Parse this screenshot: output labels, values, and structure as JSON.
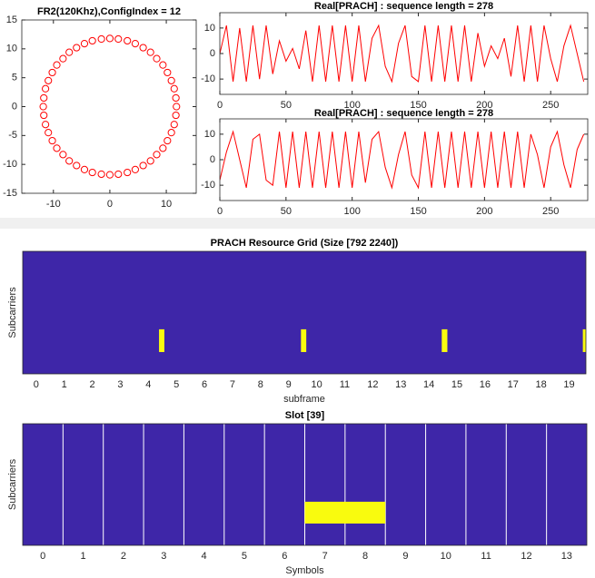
{
  "chart_data": [
    {
      "type": "scatter",
      "title": "FR2(120Khz),ConfigIndex = 12",
      "color": "#ff0000",
      "xlim": [
        -15.6,
        15.3
      ],
      "xticks": [
        -10,
        0,
        10
      ],
      "ylim": [
        -15,
        15
      ],
      "yticks": [
        -15,
        -10,
        -5,
        0,
        5,
        10,
        15
      ],
      "x": [
        11.8,
        11.7,
        11.4,
        10.9,
        10.2,
        9.4,
        8.3,
        7.2,
        5.9,
        4.5,
        3.1,
        1.5,
        0,
        -1.5,
        -3.1,
        -4.5,
        -5.9,
        -7.2,
        -8.3,
        -9.4,
        -10.2,
        -10.9,
        -11.4,
        -11.7,
        -11.8,
        -11.7,
        -11.4,
        -10.9,
        -10.2,
        -9.4,
        -8.3,
        -7.2,
        -5.9,
        -4.5,
        -3.1,
        -1.5,
        0,
        1.5,
        3.1,
        4.5,
        5.9,
        7.2,
        8.3,
        9.4,
        10.2,
        10.9,
        11.4,
        11.7
      ],
      "values": [
        0,
        1.5,
        3.1,
        4.5,
        5.9,
        7.2,
        8.3,
        9.4,
        10.2,
        10.9,
        11.4,
        11.7,
        11.8,
        11.7,
        11.4,
        10.9,
        10.2,
        9.4,
        8.3,
        7.2,
        5.9,
        4.5,
        3.1,
        1.5,
        0,
        -1.5,
        -3.1,
        -4.5,
        -5.9,
        -7.2,
        -8.3,
        -9.4,
        -10.2,
        -10.9,
        -11.4,
        -11.7,
        -11.8,
        -11.7,
        -11.4,
        -10.9,
        -10.2,
        -9.4,
        -8.3,
        -7.2,
        -5.9,
        -4.5,
        -3.1,
        -1.5
      ]
    },
    {
      "type": "line",
      "title": "Real[PRACH] : sequence length = 278",
      "color": "#ff0000",
      "xlim": [
        0,
        278
      ],
      "xticks": [
        0,
        50,
        100,
        150,
        200,
        250
      ],
      "ylim": [
        -16,
        16
      ],
      "yticks": [
        -10,
        0,
        10
      ],
      "x": [
        0,
        5,
        10,
        15,
        20,
        25,
        30,
        35,
        40,
        45,
        50,
        55,
        60,
        65,
        70,
        75,
        80,
        85,
        90,
        95,
        100,
        105,
        110,
        115,
        120,
        125,
        130,
        135,
        140,
        145,
        150,
        155,
        160,
        165,
        170,
        175,
        180,
        185,
        190,
        195,
        200,
        205,
        210,
        215,
        220,
        225,
        230,
        235,
        240,
        245,
        250,
        255,
        260,
        265,
        270,
        275
      ],
      "values": [
        0,
        11,
        -11,
        10,
        -11,
        11,
        -10,
        11,
        -8,
        5,
        -3,
        2,
        -6,
        9,
        -11,
        11,
        -11,
        11,
        -11,
        11,
        -11,
        11,
        -11,
        6,
        11,
        -5,
        -11,
        4,
        11,
        -9,
        -11,
        11,
        -11,
        11,
        -11,
        11,
        -11,
        11,
        -11,
        8,
        -5,
        3,
        -2,
        6,
        -9,
        11,
        -11,
        11,
        -11,
        11,
        -2,
        -11,
        3,
        11,
        0,
        -11
      ]
    },
    {
      "type": "line",
      "title": "Real[PRACH] : sequence length = 278",
      "color": "#ff0000",
      "xlim": [
        0,
        278
      ],
      "xticks": [
        0,
        50,
        100,
        150,
        200,
        250
      ],
      "ylim": [
        -16,
        16
      ],
      "yticks": [
        -10,
        0,
        10
      ],
      "x": [
        0,
        5,
        10,
        15,
        20,
        25,
        30,
        35,
        40,
        45,
        50,
        55,
        60,
        65,
        70,
        75,
        80,
        85,
        90,
        95,
        100,
        105,
        110,
        115,
        120,
        125,
        130,
        135,
        140,
        145,
        150,
        155,
        160,
        165,
        170,
        175,
        180,
        185,
        190,
        195,
        200,
        205,
        210,
        215,
        220,
        225,
        230,
        235,
        240,
        245,
        250,
        255,
        260,
        265,
        270,
        275
      ],
      "values": [
        -8,
        3,
        11,
        0,
        -11,
        8,
        10,
        -8,
        -10,
        11,
        -11,
        11,
        -11,
        11,
        -11,
        11,
        -11,
        11,
        -11,
        11,
        -11,
        11,
        -9,
        8,
        11,
        -3,
        -11,
        2,
        11,
        -6,
        -11,
        11,
        -11,
        11,
        -11,
        11,
        -11,
        11,
        -11,
        11,
        -11,
        11,
        -11,
        11,
        -11,
        11,
        -11,
        10,
        2,
        -11,
        5,
        11,
        -2,
        -11,
        4,
        10
      ]
    },
    {
      "type": "image",
      "title": "PRACH Resource Grid (Size [792 2240])",
      "xlabel": "subframe",
      "ylabel": "Subcarriers",
      "background": "#3e26a8",
      "color": "#f9fb0e",
      "y_reversed": true,
      "xlim": [
        -0.48,
        19.6
      ],
      "xticks": [
        0,
        1,
        2,
        3,
        4,
        5,
        6,
        7,
        8,
        9,
        10,
        11,
        12,
        13,
        14,
        15,
        16,
        17,
        18,
        19
      ],
      "ylim": [
        0,
        792
      ],
      "blocks": [
        {
          "x": [
            4.38,
            4.57
          ],
          "y": [
            504,
            651
          ]
        },
        {
          "x": [
            9.44,
            9.63
          ],
          "y": [
            504,
            651
          ]
        },
        {
          "x": [
            14.46,
            14.66
          ],
          "y": [
            504,
            651
          ]
        },
        {
          "x": [
            19.49,
            19.68
          ],
          "y": [
            504,
            651
          ]
        }
      ]
    },
    {
      "type": "image",
      "title": "Slot [39]",
      "xlabel": "Symbols",
      "ylabel": "Subcarriers",
      "background": "#3e26a8",
      "color": "#f9fb0e",
      "y_reversed": true,
      "xlim": [
        -0.5,
        13.5
      ],
      "xticks": [
        0,
        1,
        2,
        3,
        4,
        5,
        6,
        7,
        8,
        9,
        10,
        11,
        12,
        13
      ],
      "ylim": [
        0,
        792
      ],
      "separators": [
        0.5,
        1.5,
        2.5,
        3.5,
        4.5,
        5.5,
        6.5,
        7.5,
        8.5,
        9.5,
        10.5,
        11.5,
        12.5
      ],
      "blocks": [
        {
          "x": [
            6.5,
            8.5
          ],
          "y": [
            508,
            650
          ]
        }
      ]
    }
  ]
}
